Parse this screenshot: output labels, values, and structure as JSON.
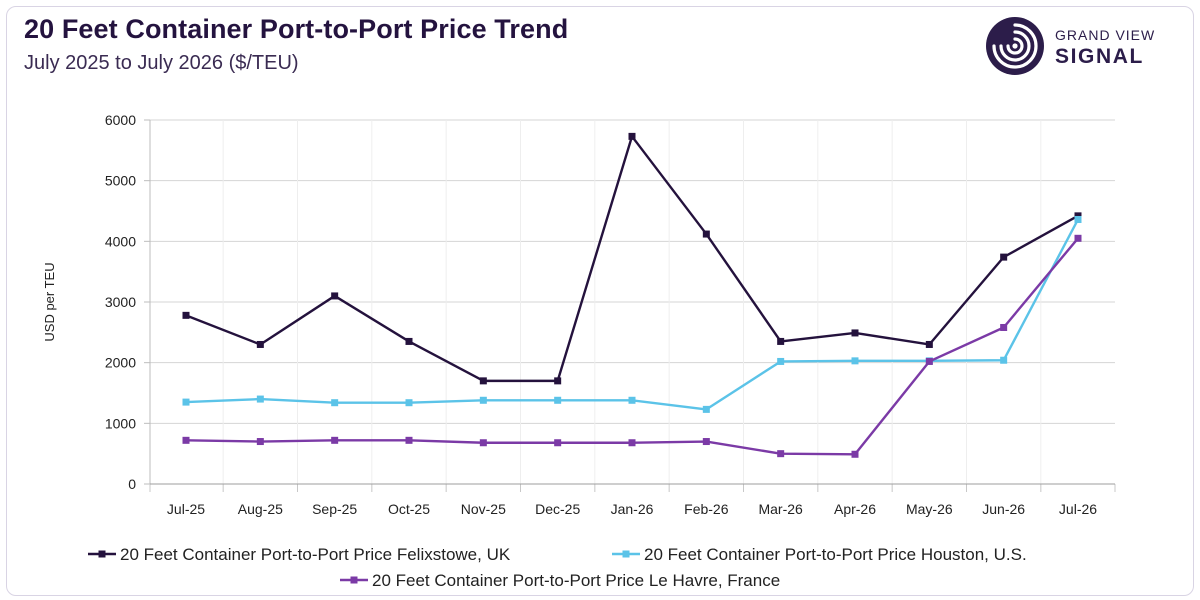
{
  "header": {
    "title": "20 Feet Container Port-to-Port Price Trend",
    "subtitle": "July 2025 to July 2026 ($/TEU)"
  },
  "logo": {
    "line1": "GRAND VIEW",
    "line2": "SIGNAL",
    "icon": "signal-swirl-icon",
    "color": "#2c1d4a"
  },
  "chart_data": {
    "type": "line",
    "ylabel": "USD per TEU",
    "xlabel": "",
    "ylim": [
      0,
      6000
    ],
    "yticks": [
      0,
      1000,
      2000,
      3000,
      4000,
      5000,
      6000
    ],
    "grid": "horizontal",
    "legend_position": "bottom",
    "categories": [
      "Jul-25",
      "Aug-25",
      "Sep-25",
      "Oct-25",
      "Nov-25",
      "Dec-25",
      "Jan-26",
      "Feb-26",
      "Mar-26",
      "Apr-26",
      "May-26",
      "Jun-26",
      "Jul-26"
    ],
    "series": [
      {
        "name": "20 Feet Container Port-to-Port Price Felixstowe, UK",
        "color": "#24123d",
        "values": [
          2780,
          2300,
          3100,
          2350,
          1700,
          1700,
          5730,
          4120,
          2350,
          2490,
          2300,
          3740,
          4420
        ]
      },
      {
        "name": "20 Feet Container Port-to-Port Price Houston, U.S.",
        "color": "#5bc3e8",
        "values": [
          1350,
          1400,
          1340,
          1340,
          1380,
          1380,
          1380,
          1230,
          2020,
          2030,
          2030,
          2040,
          4360
        ]
      },
      {
        "name": "20 Feet Container Port-to-Port Price Le Havre, France",
        "color": "#7b3aa6",
        "values": [
          720,
          700,
          720,
          720,
          680,
          680,
          680,
          700,
          500,
          490,
          2020,
          2580,
          4050
        ]
      }
    ]
  }
}
